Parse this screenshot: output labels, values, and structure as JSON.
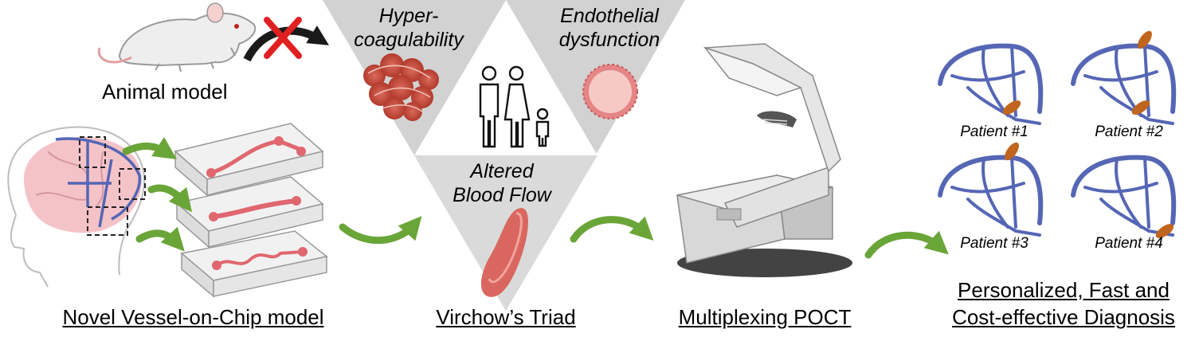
{
  "animal": {
    "label": "Animal model",
    "cross_color": "#e02020"
  },
  "chip": {
    "label": "Novel Vessel-on-Chip model",
    "channel_color": "#e0676f"
  },
  "triad": {
    "caption": "Virchow’s Triad",
    "hyper_line1": "Hyper-",
    "hyper_line2": "coagulability",
    "endo_line1": "Endothelial",
    "endo_line2": "dysfunction",
    "flow_line1": "Altered",
    "flow_line2": "Blood Flow",
    "icon": "family-icon"
  },
  "poct": {
    "label": "Multiplexing POCT"
  },
  "diagnosis": {
    "label_line1": "Personalized, Fast and",
    "label_line2": "Cost-effective Diagnosis",
    "patients": [
      "Patient #1",
      "Patient #2",
      "Patient #3",
      "Patient #4"
    ],
    "clot_color": "#c0651e",
    "vein_color": "#5566b5"
  },
  "colors": {
    "arrow_green": "#6aa538",
    "triangle_gray": "#c8c8c8"
  }
}
